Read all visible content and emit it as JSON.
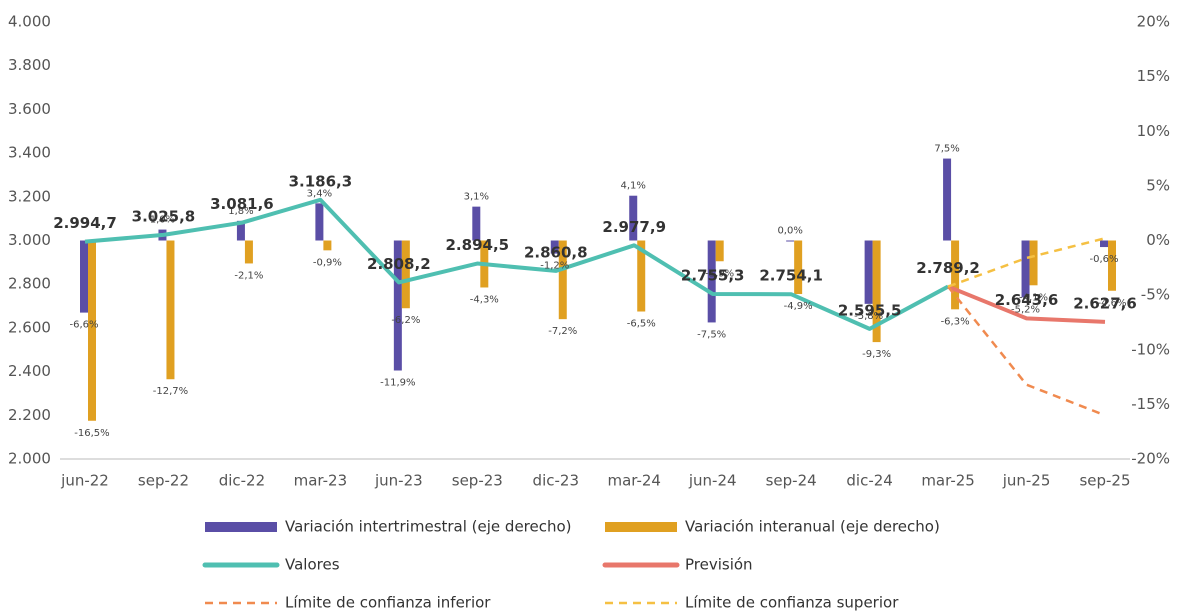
{
  "chart_data": {
    "type": "combo",
    "categories": [
      "jun-22",
      "sep-22",
      "dic-22",
      "mar-23",
      "jun-23",
      "sep-23",
      "dic-23",
      "mar-24",
      "jun-24",
      "sep-24",
      "dic-24",
      "mar-25",
      "jun-25",
      "sep-25"
    ],
    "ylim": [
      2000,
      4000
    ],
    "yticks": [
      {
        "value": 2000,
        "label": "2.000"
      },
      {
        "value": 2200,
        "label": "2.200"
      },
      {
        "value": 2400,
        "label": "2.400"
      },
      {
        "value": 2600,
        "label": "2.600"
      },
      {
        "value": 2800,
        "label": "2.800"
      },
      {
        "value": 3000,
        "label": "3.000"
      },
      {
        "value": 3200,
        "label": "3.200"
      },
      {
        "value": 3400,
        "label": "3.400"
      },
      {
        "value": 3600,
        "label": "3.600"
      },
      {
        "value": 3800,
        "label": "3.800"
      },
      {
        "value": 4000,
        "label": "4.000"
      }
    ],
    "y2lim": [
      -20,
      20
    ],
    "y2ticks": [
      {
        "value": -20,
        "label": "-20%"
      },
      {
        "value": -15,
        "label": "-15%"
      },
      {
        "value": -10,
        "label": "-10%"
      },
      {
        "value": -5,
        "label": "-5%"
      },
      {
        "value": 0,
        "label": "0%"
      },
      {
        "value": 5,
        "label": "5%"
      },
      {
        "value": 10,
        "label": "10%"
      },
      {
        "value": 15,
        "label": "15%"
      },
      {
        "value": 20,
        "label": "20%"
      }
    ],
    "series": [
      {
        "name": "Variación intertrimestral (eje derecho)",
        "type": "bar",
        "axis": "y2",
        "color": "#5a4ea6",
        "values": [
          -6.6,
          1.0,
          1.8,
          3.4,
          -11.9,
          3.1,
          -1.2,
          4.1,
          -7.5,
          0.0,
          -5.8,
          7.5,
          -5.2,
          -0.6
        ],
        "value_labels": [
          "-6,6%",
          "1,0%",
          "1,8%",
          "3,4%",
          "-11,9%",
          "3,1%",
          "-1,2%",
          "4,1%",
          "-7,5%",
          "0,0%",
          "-5,8%",
          "7,5%",
          "-5,2%",
          "-0,6%"
        ]
      },
      {
        "name": "Variación interanual (eje derecho)",
        "type": "bar",
        "axis": "y2",
        "color": "#e0a021",
        "values": [
          -16.5,
          -12.7,
          -2.1,
          -0.9,
          -6.2,
          -4.3,
          -7.2,
          -6.5,
          -1.9,
          -4.9,
          -9.3,
          -6.3,
          -4.1,
          -4.6
        ],
        "value_labels": [
          "-16,5%",
          "-12,7%",
          "-2,1%",
          "-0,9%",
          "-6,2%",
          "-4,3%",
          "-7,2%",
          "-6,5%",
          "-1,9%",
          "-4,9%",
          "-9,3%",
          "-6,3%",
          "-4,1%",
          "-4,6%"
        ]
      },
      {
        "name": "Valores",
        "type": "line",
        "color": "#4fbfb1",
        "values": [
          2994.7,
          3025.8,
          3081.6,
          3186.3,
          2808.2,
          2894.5,
          2860.8,
          2977.9,
          2755.3,
          2754.1,
          2595.5,
          2789.2,
          null,
          null
        ],
        "value_labels": [
          "2.994,7",
          "3.025,8",
          "3.081,6",
          "3.186,3",
          "2.808,2",
          "2.894,5",
          "2.860,8",
          "2.977,9",
          "2.755,3",
          "2.754,1",
          "2.595,5",
          "2.789,2",
          null,
          null
        ]
      },
      {
        "name": "Previsión",
        "type": "line",
        "color": "#e8776b",
        "values": [
          null,
          null,
          null,
          null,
          null,
          null,
          null,
          null,
          null,
          null,
          null,
          2789.2,
          2643.6,
          2627.6
        ],
        "value_labels": [
          null,
          null,
          null,
          null,
          null,
          null,
          null,
          null,
          null,
          null,
          null,
          null,
          "2.643,6",
          "2.627,6"
        ]
      },
      {
        "name": "Límite de confianza inferior",
        "type": "line",
        "dashed": true,
        "color": "#f08a4f",
        "values": [
          null,
          null,
          null,
          null,
          null,
          null,
          null,
          null,
          null,
          null,
          null,
          2789.2,
          2340,
          2200
        ]
      },
      {
        "name": "Límite de confianza superior",
        "type": "line",
        "dashed": true,
        "color": "#f5c043",
        "values": [
          null,
          null,
          null,
          null,
          null,
          null,
          null,
          null,
          null,
          null,
          null,
          2789.2,
          2920,
          3010
        ]
      }
    ]
  }
}
